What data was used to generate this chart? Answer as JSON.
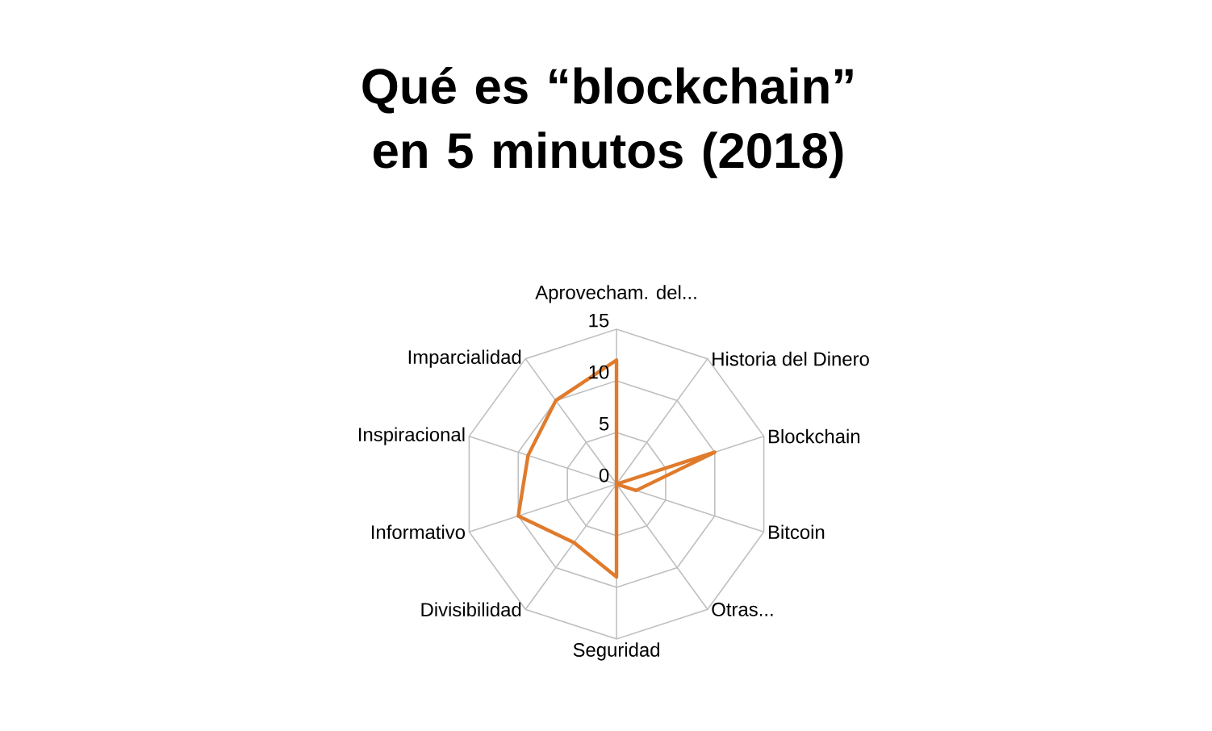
{
  "chart_data": {
    "type": "radar",
    "title": "Qué es “blockchain” en 5 minutos (2018)",
    "categories": [
      "Aprovecham. del...",
      "Historia del Dinero",
      "Blockchain",
      "Bitcoin",
      "Otras...",
      "Seguridad",
      "Divisibilidad",
      "Informativo",
      "Inspiracional",
      "Imparcialidad"
    ],
    "series": [
      {
        "color": "#e07b2c",
        "values": [
          12,
          0,
          10,
          2,
          0,
          9,
          7,
          10,
          9,
          10
        ]
      }
    ],
    "ylim": [
      0,
      15
    ],
    "yticks": [
      0,
      5,
      10,
      15
    ],
    "grid": true,
    "marker": "none",
    "line_style": "solid"
  }
}
